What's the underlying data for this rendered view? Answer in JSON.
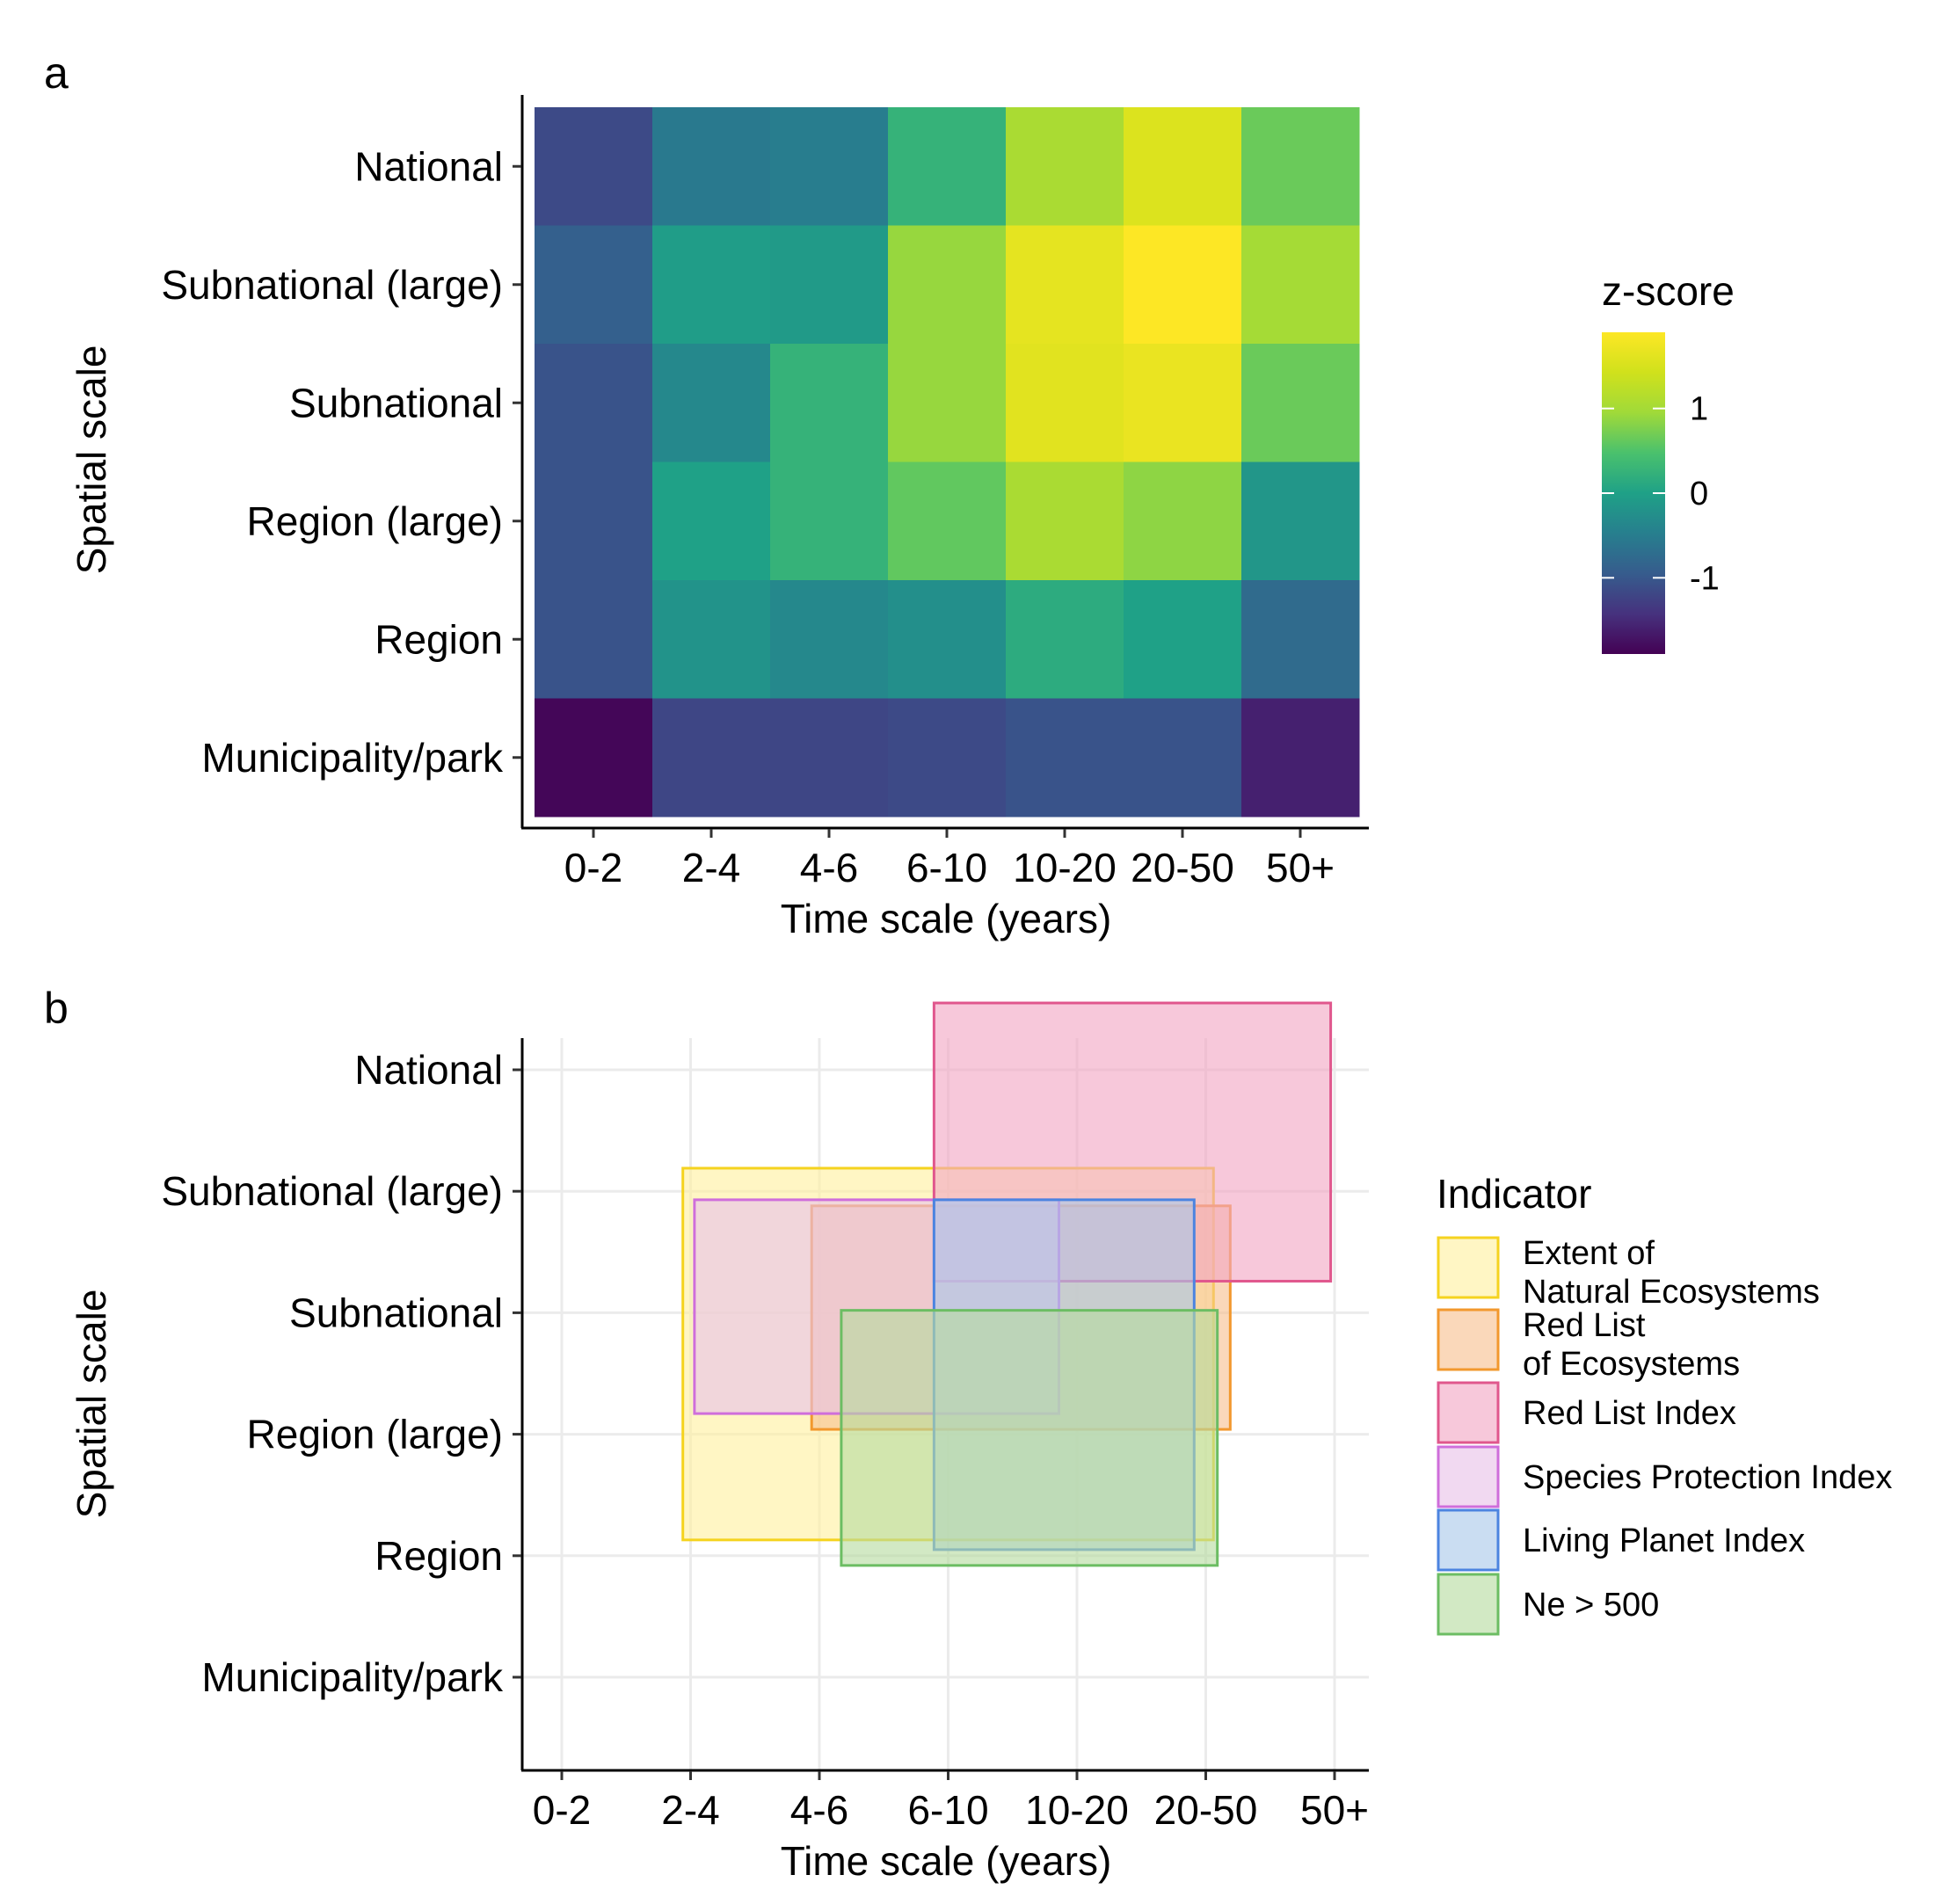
{
  "panel_labels": [
    "a",
    "b"
  ],
  "chart_data": [
    {
      "type": "heatmap",
      "panel": "a",
      "xlabel": "Time scale (years)",
      "ylabel": "Spatial scale",
      "x_categories": [
        "0-2",
        "2-4",
        "4-6",
        "6-10",
        "10-20",
        "20-50",
        "50+"
      ],
      "y_categories": [
        "Municipality/park",
        "Region",
        "Region (large)",
        "Subnational",
        "Subnational (large)",
        "National"
      ],
      "values": [
        [
          -1.85,
          -1.2,
          -1.2,
          -1.15,
          -1.05,
          -1.05,
          -1.6
        ],
        [
          -1.05,
          -0.2,
          -0.35,
          -0.25,
          0.15,
          0.0,
          -0.75
        ],
        [
          -1.05,
          0.0,
          0.25,
          0.6,
          1.05,
          0.85,
          -0.15
        ],
        [
          -1.05,
          -0.35,
          0.25,
          0.9,
          1.6,
          1.7,
          0.65
        ],
        [
          -0.9,
          -0.05,
          -0.1,
          0.9,
          1.65,
          1.9,
          1.0
        ],
        [
          -1.15,
          -0.55,
          -0.5,
          0.25,
          1.05,
          1.55,
          0.65
        ]
      ],
      "legend": {
        "title": "z-score",
        "range": [
          -1.9,
          1.9
        ],
        "ticks": [
          1,
          0,
          -1
        ],
        "tick_labels": [
          "1",
          "0",
          "-1"
        ],
        "placement": "right"
      }
    },
    {
      "type": "range-rectangles",
      "panel": "b",
      "xlabel": "Time scale (years)",
      "ylabel": "Spatial scale",
      "x_categories": [
        "0-2",
        "2-4",
        "4-6",
        "6-10",
        "10-20",
        "20-50",
        "50+"
      ],
      "y_categories": [
        "Municipality/park",
        "Region",
        "Region (large)",
        "Subnational",
        "Subnational (large)",
        "National"
      ],
      "grid": true,
      "legend": {
        "title": "Indicator",
        "placement": "right"
      },
      "series": [
        {
          "name": "Extent of\nNatural Ecosystems",
          "x_range": [
            1.94,
            6.06
          ],
          "y_range": [
            2.13,
            5.19
          ],
          "color": "#f5d31f",
          "fill": "#fff0a0"
        },
        {
          "name": "Red List\nof Ecosystems",
          "x_range": [
            2.94,
            6.19
          ],
          "y_range": [
            3.04,
            4.88
          ],
          "color": "#f2982e",
          "fill": "#f7c08f"
        },
        {
          "name": "Red List Index",
          "x_range": [
            3.89,
            6.97
          ],
          "y_range": [
            4.26,
            6.55
          ],
          "color": "#e0578d",
          "fill": "#f2a7c4"
        },
        {
          "name": "Species Protection Index",
          "x_range": [
            2.03,
            4.86
          ],
          "y_range": [
            3.17,
            4.93
          ],
          "color": "#cf6edb",
          "fill": "#e8c2e8"
        },
        {
          "name": "Living Planet Index",
          "x_range": [
            3.89,
            5.91
          ],
          "y_range": [
            2.05,
            4.93
          ],
          "color": "#4c84e0",
          "fill": "#a9c8ea"
        },
        {
          "name": "Ne > 500",
          "x_range": [
            3.17,
            6.09
          ],
          "y_range": [
            1.92,
            4.02
          ],
          "color": "#6cbd63",
          "fill": "#b6dba0"
        }
      ]
    }
  ]
}
